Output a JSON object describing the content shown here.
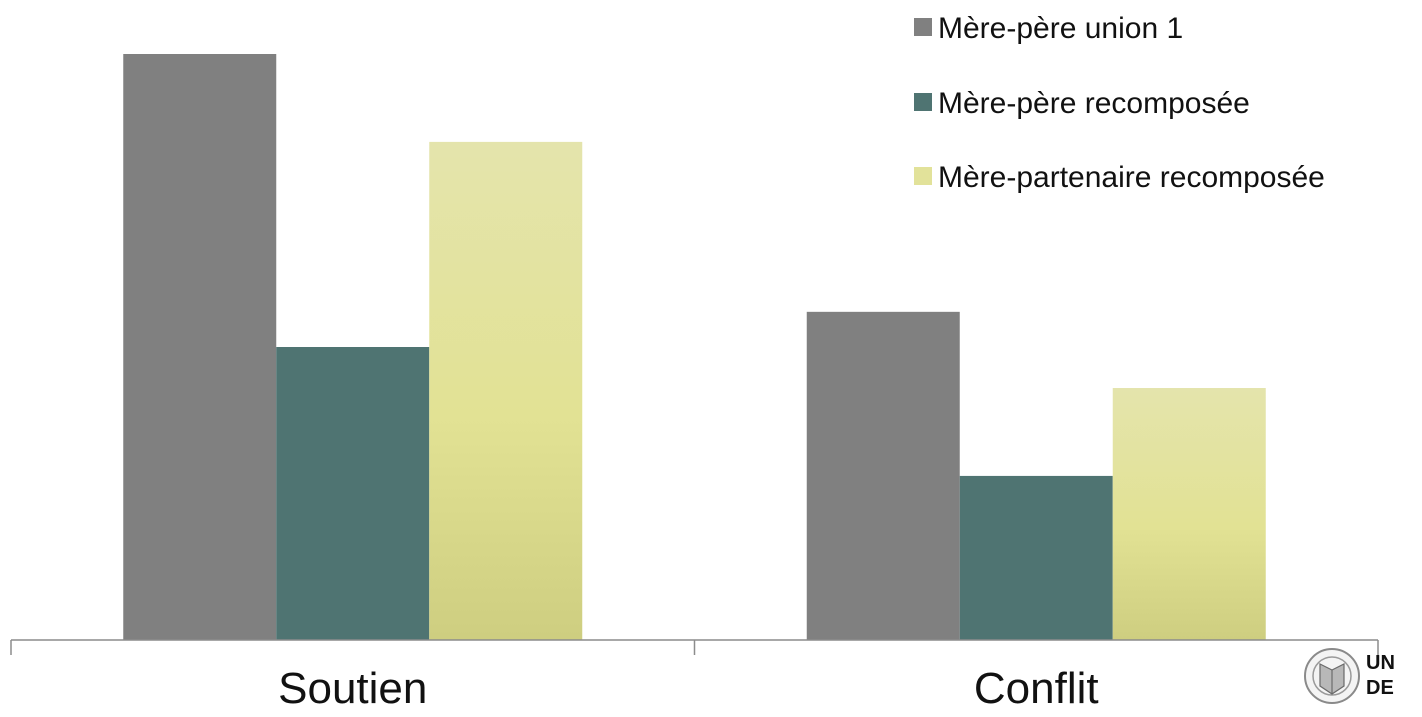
{
  "chart_data": {
    "type": "bar",
    "title": "",
    "xlabel": "",
    "ylabel": "",
    "categories": [
      "Soutien",
      "Conflit"
    ],
    "ylim": [
      0,
      100
    ],
    "grid": false,
    "legend_position": "top-right",
    "series": [
      {
        "name": "Mère-père union 1",
        "color": "#808080",
        "values": [
          100,
          56
        ]
      },
      {
        "name": "Mère-père recomposée",
        "color": "#4f7472",
        "values": [
          50,
          28
        ]
      },
      {
        "name": "Mère-partenaire recomposée",
        "color": "#e0e09c",
        "values": [
          85,
          43
        ]
      }
    ]
  },
  "logo": {
    "icon": "university-seal-icon",
    "text_line1": "UN",
    "text_line2": "DE"
  }
}
